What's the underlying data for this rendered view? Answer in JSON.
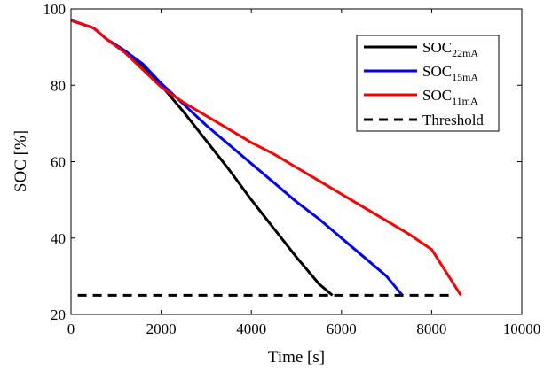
{
  "chart_data": {
    "type": "line",
    "title": "",
    "xlabel": "Time [s]",
    "ylabel": "SOC [%]",
    "xlim": [
      0,
      10000
    ],
    "ylim": [
      20,
      100
    ],
    "xticks": [
      0,
      2000,
      4000,
      6000,
      8000,
      10000
    ],
    "yticks": [
      20,
      40,
      60,
      80,
      100
    ],
    "xtick_labels": [
      "0",
      "2000",
      "4000",
      "6000",
      "8000",
      "10000"
    ],
    "ytick_labels": [
      "20",
      "40",
      "60",
      "80",
      "100"
    ],
    "grid": false,
    "legend_position": "top-right",
    "series": [
      {
        "name_base": "SOC",
        "name_sub": "22mA",
        "color": "#000000",
        "dash": "solid",
        "x": [
          0,
          500,
          800,
          1200,
          1600,
          2000,
          2500,
          3000,
          3500,
          4000,
          4500,
          5000,
          5500,
          5800
        ],
        "y": [
          97,
          95,
          92,
          89,
          85,
          80,
          73,
          65.5,
          58,
          50,
          42.5,
          35,
          28,
          25
        ]
      },
      {
        "name_base": "SOC",
        "name_sub": "15mA",
        "color": "#0000ff",
        "dash": "solid",
        "x": [
          0,
          500,
          800,
          1200,
          1600,
          2000,
          2500,
          3000,
          3500,
          4000,
          4500,
          5000,
          5500,
          6000,
          6500,
          7000,
          7350
        ],
        "y": [
          97,
          95,
          92,
          89,
          85.5,
          80.5,
          75,
          69.5,
          64.5,
          59.5,
          54.5,
          49.5,
          45,
          40,
          35,
          30,
          25
        ]
      },
      {
        "name_base": "SOC",
        "name_sub": "11mA",
        "color": "#ff0000",
        "dash": "solid",
        "x": [
          0,
          500,
          800,
          1200,
          1600,
          2000,
          2500,
          3000,
          3500,
          4000,
          4500,
          5000,
          5500,
          6000,
          6500,
          7000,
          7500,
          8000,
          8650
        ],
        "y": [
          97,
          95,
          92,
          88.5,
          84,
          79.5,
          75.5,
          72,
          68.5,
          65,
          62,
          58.5,
          55,
          51.5,
          48,
          44.5,
          41,
          37,
          25
        ]
      },
      {
        "name": "Threshold",
        "color": "#000000",
        "dash": "dashed",
        "x": [
          150,
          8500
        ],
        "y": [
          25,
          25
        ]
      }
    ]
  }
}
